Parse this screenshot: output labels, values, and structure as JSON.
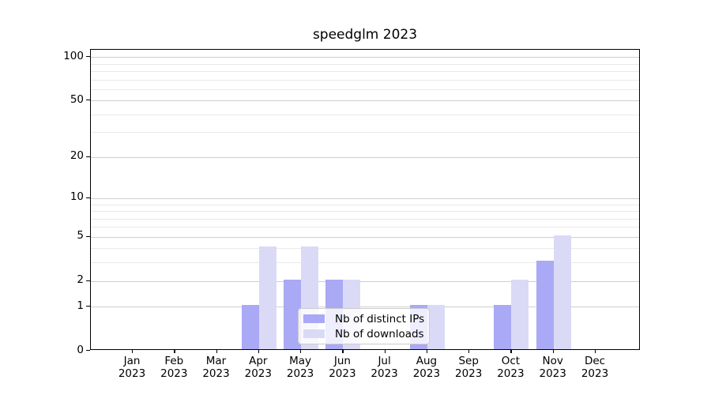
{
  "chart_data": {
    "type": "bar",
    "title": "speedglm 2023",
    "categories": [
      "Jan",
      "Feb",
      "Mar",
      "Apr",
      "May",
      "Jun",
      "Jul",
      "Aug",
      "Sep",
      "Oct",
      "Nov",
      "Dec"
    ],
    "year": "2023",
    "series": [
      {
        "name": "Nb of distinct IPs",
        "color": "#a9a9f6",
        "values": [
          0,
          0,
          0,
          1,
          2,
          2,
          0,
          1,
          0,
          1,
          3,
          0
        ]
      },
      {
        "name": "Nb of downloads",
        "color": "#dadaf6",
        "values": [
          0,
          0,
          0,
          4,
          4,
          2,
          0,
          1,
          0,
          2,
          5,
          0
        ]
      }
    ],
    "yscale": "log1p",
    "yticks": [
      0,
      1,
      2,
      5,
      10,
      20,
      50,
      100
    ],
    "minor_yticks": [
      3,
      4,
      6,
      7,
      8,
      9,
      30,
      40,
      60,
      70,
      80,
      90
    ],
    "ylim": [
      0,
      112
    ],
    "xlabel": "",
    "ylabel": "",
    "grid": true,
    "legend_position": "lower center",
    "background": "#ffffff",
    "axis_color": "#000000"
  }
}
